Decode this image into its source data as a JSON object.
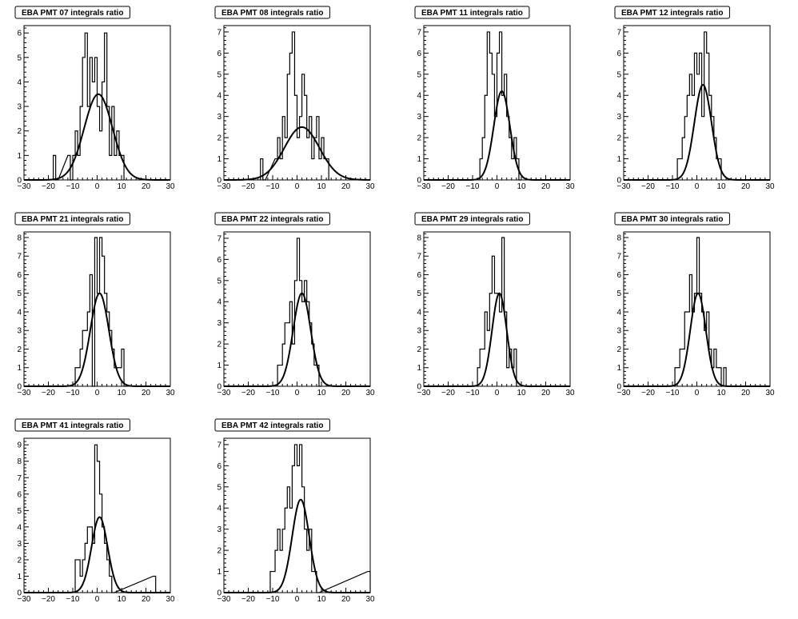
{
  "chart_data": [
    {
      "type": "bar",
      "title": "EBA PMT 07 integrals ratio",
      "xlim": [
        -30,
        30
      ],
      "ylim": [
        0,
        6.3
      ],
      "x_ticks": [
        -30,
        -20,
        -10,
        0,
        10,
        20,
        30
      ],
      "y_ticks": [
        0,
        1,
        2,
        3,
        4,
        5,
        6
      ],
      "bin_width": 1,
      "x": [
        -17.5,
        -16.5,
        -11.5,
        -10.5,
        -9.5,
        -8.5,
        -7.5,
        -6.5,
        -5.5,
        -4.5,
        -3.5,
        -2.5,
        -1.5,
        -0.5,
        0.5,
        1.5,
        2.5,
        3.5,
        4.5,
        5.5,
        6.5,
        7.5,
        8.5,
        9.5,
        10.5
      ],
      "values": [
        1,
        0,
        1,
        0,
        1,
        2,
        1,
        3,
        5,
        6,
        3,
        5,
        4,
        5,
        3,
        2,
        4,
        6,
        3,
        1,
        3,
        1,
        2,
        1,
        1
      ],
      "fit": {
        "type": "gaussian",
        "amplitude": 3.5,
        "mean": 0.5,
        "sigma": 5.8
      }
    },
    {
      "type": "bar",
      "title": "EBA PMT 08 integrals ratio",
      "xlim": [
        -30,
        30
      ],
      "ylim": [
        0,
        7.3
      ],
      "x_ticks": [
        -30,
        -20,
        -10,
        0,
        10,
        20,
        30
      ],
      "y_ticks": [
        0,
        1,
        2,
        3,
        4,
        5,
        6,
        7
      ],
      "bin_width": 1,
      "x": [
        -14.5,
        -13.5,
        -8.5,
        -7.5,
        -6.5,
        -5.5,
        -4.5,
        -3.5,
        -2.5,
        -1.5,
        -0.5,
        0.5,
        1.5,
        2.5,
        3.5,
        4.5,
        5.5,
        6.5,
        7.5,
        8.5,
        9.5,
        10.5,
        11.5,
        12.5
      ],
      "values": [
        1,
        0,
        1,
        2,
        1,
        3,
        2,
        5,
        6,
        7,
        4,
        2,
        3,
        5,
        4,
        2,
        3,
        1,
        2,
        3,
        1,
        2,
        1,
        1
      ],
      "fit": {
        "type": "gaussian",
        "amplitude": 2.5,
        "mean": 2.0,
        "sigma": 7.2
      }
    },
    {
      "type": "bar",
      "title": "EBA PMT 11 integrals ratio",
      "xlim": [
        -30,
        30
      ],
      "ylim": [
        0,
        7.3
      ],
      "x_ticks": [
        -30,
        -20,
        -10,
        0,
        10,
        20,
        30
      ],
      "y_ticks": [
        0,
        1,
        2,
        3,
        4,
        5,
        6,
        7
      ],
      "bin_width": 1,
      "x": [
        -6.5,
        -5.5,
        -4.5,
        -3.5,
        -2.5,
        -1.5,
        -0.5,
        0.5,
        1.5,
        2.5,
        3.5,
        4.5,
        5.5,
        6.5,
        7.5,
        8.5,
        9.5
      ],
      "values": [
        1,
        2,
        4,
        7,
        6,
        5,
        3,
        6,
        7,
        4,
        5,
        3,
        2,
        1,
        2,
        1,
        0
      ],
      "fit": {
        "type": "gaussian",
        "amplitude": 4.2,
        "mean": 2.0,
        "sigma": 3.3
      }
    },
    {
      "type": "bar",
      "title": "EBA PMT 12 integrals ratio",
      "xlim": [
        -30,
        30
      ],
      "ylim": [
        0,
        7.3
      ],
      "x_ticks": [
        -30,
        -20,
        -10,
        0,
        10,
        20,
        30
      ],
      "y_ticks": [
        0,
        1,
        2,
        3,
        4,
        5,
        6,
        7
      ],
      "bin_width": 1,
      "x": [
        -7.5,
        -6.5,
        -5.5,
        -4.5,
        -3.5,
        -2.5,
        -1.5,
        -0.5,
        0.5,
        1.5,
        2.5,
        3.5,
        4.5,
        5.5,
        6.5,
        7.5,
        8.5,
        9.5
      ],
      "values": [
        1,
        1,
        2,
        3,
        4,
        5,
        4,
        6,
        5,
        6,
        3,
        7,
        6,
        4,
        3,
        2,
        1,
        1
      ],
      "fit": {
        "type": "gaussian",
        "amplitude": 4.5,
        "mean": 2.5,
        "sigma": 3.5
      }
    },
    {
      "type": "bar",
      "title": "EBA PMT 21 integrals ratio",
      "xlim": [
        -30,
        30
      ],
      "ylim": [
        0,
        8.3
      ],
      "x_ticks": [
        -30,
        -20,
        -10,
        0,
        10,
        20,
        30
      ],
      "y_ticks": [
        0,
        1,
        2,
        3,
        4,
        5,
        6,
        7,
        8
      ],
      "bin_width": 1,
      "x": [
        -8.5,
        -7.5,
        -6.5,
        -5.5,
        -4.5,
        -3.5,
        -2.5,
        -1.5,
        -0.5,
        0.5,
        1.5,
        2.5,
        3.5,
        4.5,
        5.5,
        6.5,
        7.5,
        8.5,
        9.5,
        10.5,
        11.5
      ],
      "values": [
        1,
        1,
        2,
        3,
        3,
        4,
        6,
        0,
        8,
        5,
        8,
        7,
        5,
        4,
        3,
        2,
        1,
        1,
        1,
        2,
        0
      ],
      "fit": {
        "type": "gaussian",
        "amplitude": 5.0,
        "mean": 1.0,
        "sigma": 3.8
      }
    },
    {
      "type": "bar",
      "title": "EBA PMT 22 integrals ratio",
      "xlim": [
        -30,
        30
      ],
      "ylim": [
        0,
        7.3
      ],
      "x_ticks": [
        -30,
        -20,
        -10,
        0,
        10,
        20,
        30
      ],
      "y_ticks": [
        0,
        1,
        2,
        3,
        4,
        5,
        6,
        7
      ],
      "bin_width": 1,
      "x": [
        -7.5,
        -6.5,
        -5.5,
        -4.5,
        -3.5,
        -2.5,
        -1.5,
        -0.5,
        0.5,
        1.5,
        2.5,
        3.5,
        4.5,
        5.5,
        6.5,
        7.5,
        8.5,
        9.5
      ],
      "values": [
        1,
        1,
        2,
        3,
        3,
        4,
        2,
        5,
        7,
        5,
        4,
        5,
        4,
        3,
        2,
        1,
        1,
        0
      ],
      "fit": {
        "type": "gaussian",
        "amplitude": 4.4,
        "mean": 2.0,
        "sigma": 3.6
      }
    },
    {
      "type": "bar",
      "title": "EBA PMT 29 integrals ratio",
      "xlim": [
        -30,
        30
      ],
      "ylim": [
        0,
        8.3
      ],
      "x_ticks": [
        -30,
        -20,
        -10,
        0,
        10,
        20,
        30
      ],
      "y_ticks": [
        0,
        1,
        2,
        3,
        4,
        5,
        6,
        7,
        8
      ],
      "bin_width": 1,
      "x": [
        -7.5,
        -6.5,
        -5.5,
        -4.5,
        -3.5,
        -2.5,
        -1.5,
        -0.5,
        0.5,
        1.5,
        2.5,
        3.5,
        4.5,
        5.5,
        6.5,
        7.5,
        8.5
      ],
      "values": [
        1,
        2,
        2,
        4,
        3,
        5,
        7,
        5,
        5,
        4,
        8,
        4,
        1,
        2,
        1,
        2,
        0
      ],
      "fit": {
        "type": "gaussian",
        "amplitude": 5.0,
        "mean": 1.0,
        "sigma": 3.0
      }
    },
    {
      "type": "bar",
      "title": "EBA PMT 30 integrals ratio",
      "xlim": [
        -30,
        30
      ],
      "ylim": [
        0,
        8.3
      ],
      "x_ticks": [
        -30,
        -20,
        -10,
        0,
        10,
        20,
        30
      ],
      "y_ticks": [
        0,
        1,
        2,
        3,
        4,
        5,
        6,
        7,
        8
      ],
      "bin_width": 1,
      "x": [
        -8.5,
        -7.5,
        -6.5,
        -5.5,
        -4.5,
        -3.5,
        -2.5,
        -1.5,
        -0.5,
        0.5,
        1.5,
        2.5,
        3.5,
        4.5,
        5.5,
        6.5,
        7.5,
        8.5,
        9.5,
        10.5,
        11.5,
        12.5
      ],
      "values": [
        1,
        1,
        2,
        2,
        4,
        4,
        6,
        4,
        5,
        8,
        5,
        4,
        3,
        4,
        2,
        1,
        2,
        1,
        1,
        0,
        1,
        0
      ],
      "fit": {
        "type": "gaussian",
        "amplitude": 5.0,
        "mean": 0.5,
        "sigma": 3.2
      }
    },
    {
      "type": "bar",
      "title": "EBA PMT 41 integrals ratio",
      "xlim": [
        -30,
        30
      ],
      "ylim": [
        0,
        9.4
      ],
      "x_ticks": [
        -30,
        -20,
        -10,
        0,
        10,
        20,
        30
      ],
      "y_ticks": [
        0,
        1,
        2,
        3,
        4,
        5,
        6,
        7,
        8,
        9
      ],
      "bin_width": 1,
      "x": [
        -8.5,
        -7.5,
        -6.5,
        -5.5,
        -4.5,
        -3.5,
        -2.5,
        -1.5,
        -0.5,
        0.5,
        1.5,
        2.5,
        3.5,
        4.5,
        5.5,
        6.5,
        23.5,
        24.5
      ],
      "values": [
        2,
        2,
        1,
        2,
        3,
        4,
        4,
        3,
        9,
        8,
        6,
        4,
        3,
        2,
        1,
        0,
        1,
        0
      ],
      "fit": {
        "type": "gaussian",
        "amplitude": 4.6,
        "mean": 1.0,
        "sigma": 3.3
      }
    },
    {
      "type": "bar",
      "title": "EBA PMT 42 integrals ratio",
      "xlim": [
        -30,
        30
      ],
      "ylim": [
        0,
        7.3
      ],
      "x_ticks": [
        -30,
        -20,
        -10,
        0,
        10,
        20,
        30
      ],
      "y_ticks": [
        0,
        1,
        2,
        3,
        4,
        5,
        6,
        7
      ],
      "bin_width": 1,
      "x": [
        -10.5,
        -9.5,
        -8.5,
        -7.5,
        -6.5,
        -5.5,
        -4.5,
        -3.5,
        -2.5,
        -1.5,
        -0.5,
        0.5,
        1.5,
        2.5,
        3.5,
        4.5,
        5.5,
        6.5,
        7.5,
        8.5,
        29.5
      ],
      "values": [
        1,
        1,
        2,
        3,
        2,
        3,
        4,
        5,
        4,
        6,
        7,
        6,
        7,
        5,
        3,
        2,
        3,
        1,
        1,
        0,
        1
      ],
      "fit": {
        "type": "gaussian",
        "amplitude": 4.4,
        "mean": 1.5,
        "sigma": 3.5
      }
    }
  ]
}
